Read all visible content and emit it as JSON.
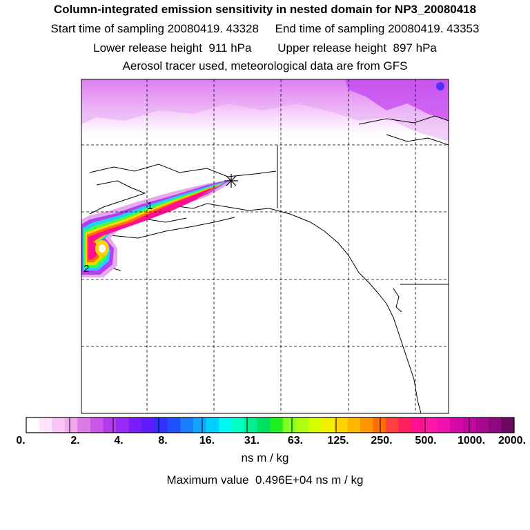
{
  "titles": {
    "line1": "Column-integrated emission sensitivity in nested domain for NP3_20080418",
    "line2": "Start time of sampling 20080419. 43328     End time of sampling 20080419. 43353",
    "line3": "Lower release height  911 hPa        Upper release height  897 hPa",
    "line4": "Aerosol tracer used, meteorological data are from GFS"
  },
  "map": {
    "labels": [
      "1",
      "2"
    ],
    "release_marker": "asterisk-icon"
  },
  "colorbar": {
    "tick_labels": [
      "0.",
      "2.",
      "4.",
      "8.",
      "16.",
      "31.",
      "63.",
      "125.",
      "250.",
      "500.",
      "1000.",
      "2000."
    ],
    "colors": [
      "#ffffff",
      "#fde4fc",
      "#f9c6f6",
      "#f2a6ee",
      "#de7ae8",
      "#cc55ea",
      "#b43af0",
      "#9a28f6",
      "#7a1cf8",
      "#5e1cff",
      "#3030ff",
      "#2050ff",
      "#1a7cff",
      "#10a4ff",
      "#00d0ff",
      "#00f6f0",
      "#00ffc0",
      "#00f090",
      "#00e060",
      "#20f020",
      "#80ff20",
      "#b0ff10",
      "#d8ff00",
      "#f0f000",
      "#ffd400",
      "#ffb800",
      "#ff9600",
      "#ff6c00",
      "#ff4040",
      "#ff2060",
      "#ff1090",
      "#ff18a8",
      "#f010b0",
      "#d808a8",
      "#c008a0",
      "#a80890",
      "#900880",
      "#6a0860"
    ],
    "unit": "ns m / kg"
  },
  "maximum": "Maximum value  0.496E+04 ns m / kg"
}
